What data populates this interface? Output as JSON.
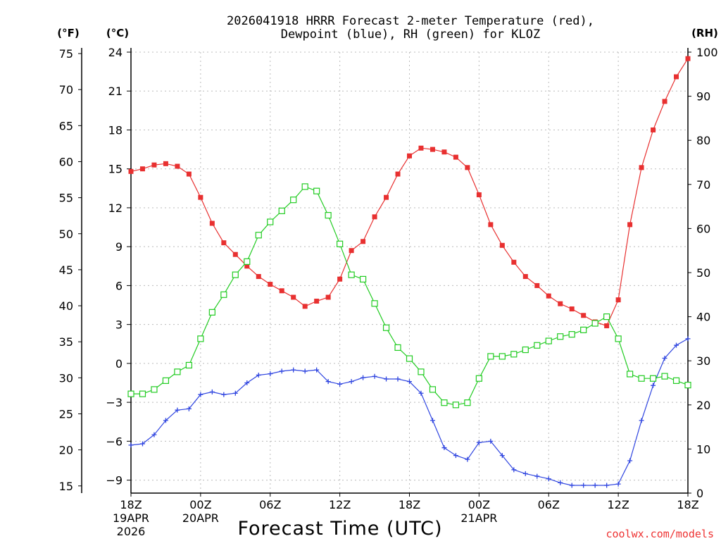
{
  "header": {
    "title_line1": "2026041918 HRRR Forecast 2-meter Temperature (red),",
    "title_line2": "Dewpoint (blue), RH (green) for KLOZ",
    "label_f": "(°F)",
    "label_c": "(°C)",
    "label_rh": "(RH)"
  },
  "footer": {
    "xlabel": "Forecast Time (UTC)",
    "watermark": "coolwx.com/models",
    "date_labels": [
      {
        "line1": "19APR",
        "line2": "2026"
      },
      {
        "line1": "20APR",
        "line2": ""
      },
      {
        "line1": "21APR",
        "line2": ""
      }
    ]
  },
  "colors": {
    "temperature": "#e83030",
    "dewpoint": "#2f45e0",
    "rh": "#22cc22",
    "grid": "#bbbbbb",
    "watermark": "#ee3333"
  },
  "chart_data": {
    "type": "line",
    "title": "2026041918 HRRR Forecast 2-meter Temperature (red), Dewpoint (blue), RH (green) for KLOZ",
    "xlabel": "Forecast Time (UTC)",
    "x_unit": "forecast hour from 2026-04-19 18Z",
    "x": [
      0,
      1,
      2,
      3,
      4,
      5,
      6,
      7,
      8,
      9,
      10,
      11,
      12,
      13,
      14,
      15,
      16,
      17,
      18,
      19,
      20,
      21,
      22,
      23,
      24,
      25,
      26,
      27,
      28,
      29,
      30,
      31,
      32,
      33,
      34,
      35,
      36,
      37,
      38,
      39,
      40,
      41,
      42,
      43,
      44,
      45,
      46,
      47,
      48
    ],
    "x_ticks": [
      {
        "hour": 0,
        "label": "18Z"
      },
      {
        "hour": 6,
        "label": "00Z"
      },
      {
        "hour": 12,
        "label": "06Z"
      },
      {
        "hour": 18,
        "label": "12Z"
      },
      {
        "hour": 24,
        "label": "18Z"
      },
      {
        "hour": 30,
        "label": "00Z"
      },
      {
        "hour": 36,
        "label": "06Z"
      },
      {
        "hour": 42,
        "label": "12Z"
      },
      {
        "hour": 48,
        "label": "18Z"
      }
    ],
    "xlim": [
      0,
      48
    ],
    "y_left_c": {
      "label": "(°C)",
      "lim": [
        -10,
        24
      ],
      "ticks": [
        24,
        21,
        18,
        15,
        12,
        9,
        6,
        3,
        0,
        -3,
        -6,
        -9
      ],
      "tick_labels": [
        "24",
        "21",
        "18",
        "15",
        "12",
        "9",
        "6",
        "3",
        "0",
        "−3",
        "−6",
        "−9"
      ]
    },
    "y_left_f": {
      "label": "(°F)",
      "ticks": [
        75,
        70,
        65,
        60,
        55,
        50,
        45,
        40,
        35,
        30,
        25,
        20,
        15
      ]
    },
    "y_right": {
      "label": "(RH)",
      "lim": [
        0,
        100
      ],
      "ticks": [
        100,
        90,
        80,
        70,
        60,
        50,
        40,
        30,
        20,
        10,
        0
      ]
    },
    "grid": true,
    "series": [
      {
        "name": "Temperature",
        "axis": "celsius",
        "color": "#e83030",
        "marker": "filled-square",
        "values": [
          14.8,
          15.0,
          15.3,
          15.4,
          15.2,
          14.6,
          12.8,
          10.8,
          9.3,
          8.4,
          7.5,
          6.7,
          6.1,
          5.6,
          5.1,
          4.4,
          4.8,
          5.1,
          6.5,
          8.7,
          9.4,
          11.3,
          12.8,
          14.6,
          16.0,
          16.6,
          16.5,
          16.3,
          15.9,
          15.1,
          13.0,
          10.7,
          9.1,
          7.8,
          6.7,
          6.0,
          5.2,
          4.6,
          4.2,
          3.7,
          3.2,
          2.9,
          4.9,
          10.7,
          15.1,
          18.0,
          20.2,
          22.1,
          23.5
        ]
      },
      {
        "name": "Dewpoint",
        "axis": "celsius",
        "color": "#2f45e0",
        "marker": "plus",
        "values": [
          -6.3,
          -6.2,
          -5.5,
          -4.4,
          -3.6,
          -3.5,
          -2.4,
          -2.2,
          -2.4,
          -2.3,
          -1.5,
          -0.9,
          -0.8,
          -0.6,
          -0.5,
          -0.6,
          -0.5,
          -1.4,
          -1.6,
          -1.4,
          -1.1,
          -1.0,
          -1.2,
          -1.2,
          -1.4,
          -2.3,
          -4.4,
          -6.5,
          -7.1,
          -7.4,
          -6.1,
          -6.0,
          -7.1,
          -8.2,
          -8.5,
          -8.7,
          -8.9,
          -9.2,
          -9.4,
          -9.4,
          -9.4,
          -9.4,
          -9.3,
          -7.5,
          -4.4,
          -1.7,
          0.4,
          1.4,
          1.9
        ]
      },
      {
        "name": "RH",
        "axis": "rh",
        "color": "#22cc22",
        "marker": "open-square",
        "values": [
          22.5,
          22.5,
          23.5,
          25.5,
          27.5,
          29,
          35,
          41,
          45,
          49.5,
          52.5,
          58.5,
          61.5,
          64,
          66.5,
          69.5,
          68.5,
          63,
          56.5,
          49.5,
          48.5,
          43,
          37.5,
          33,
          30.5,
          27.5,
          23.5,
          20.5,
          20,
          20.5,
          26,
          31,
          31,
          31.5,
          32.5,
          33.5,
          34.5,
          35.5,
          36,
          37,
          38.5,
          40,
          35,
          27,
          26,
          26,
          26.5,
          25.5,
          24.5
        ]
      }
    ]
  }
}
